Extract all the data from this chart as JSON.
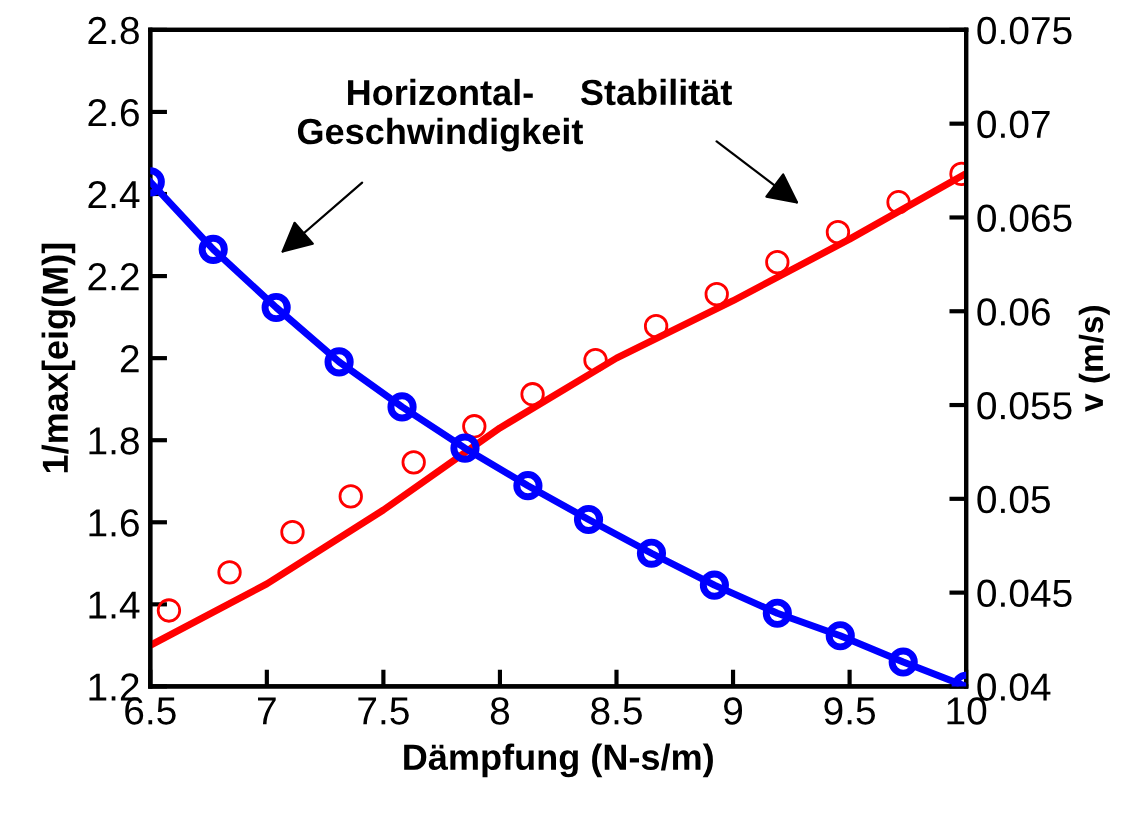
{
  "chart_data": {
    "type": "line",
    "xlabel": "Dämpfung (N-s/m)",
    "ylabel": "1/max[eig(M)]",
    "y2label": "v (m/s)",
    "xlim": [
      6.5,
      10
    ],
    "xticks": [
      6.5,
      7,
      7.5,
      8,
      8.5,
      9,
      9.5,
      10
    ],
    "ylim": [
      1.2,
      2.8
    ],
    "yticks": [
      1.2,
      1.4,
      1.6,
      1.8,
      2,
      2.2,
      2.4,
      2.6,
      2.8
    ],
    "y2lim": [
      0.04,
      0.075
    ],
    "y2ticks": [
      0.04,
      0.045,
      0.05,
      0.055,
      0.06,
      0.065,
      0.07,
      0.075
    ],
    "grid": false,
    "legend": false,
    "series": [
      {
        "color": "#ff0000",
        "marker": "none",
        "x": [
          6.5,
          7,
          7.5,
          8,
          8.5,
          9,
          9.5,
          10
        ],
        "values": [
          1.3,
          1.45,
          1.63,
          1.83,
          2.0,
          2.14,
          2.29,
          2.45
        ]
      },
      {
        "type": "scatter",
        "color": "#ff0000",
        "marker": "circle",
        "x": [
          6.58,
          6.84,
          7.11,
          7.36,
          7.63,
          7.89,
          8.14,
          8.41,
          8.67,
          8.93,
          9.19,
          9.45,
          9.71,
          9.98
        ],
        "values": [
          1.385,
          1.478,
          1.576,
          1.663,
          1.746,
          1.834,
          1.912,
          1.995,
          2.078,
          2.156,
          2.234,
          2.307,
          2.38,
          2.449
        ]
      },
      {
        "type": "line",
        "axis": "y2",
        "color": "#0000ff",
        "marker": "circle",
        "x": [
          6.5,
          6.77,
          7.04,
          7.31,
          7.58,
          7.85,
          8.12,
          8.38,
          8.65,
          8.92,
          9.19,
          9.46,
          9.73,
          10
        ],
        "values": [
          0.0669,
          0.0633,
          0.0602,
          0.0573,
          0.0549,
          0.0527,
          0.0507,
          0.0489,
          0.0471,
          0.0454,
          0.0439,
          0.0427,
          0.0413,
          0.04
        ]
      }
    ],
    "annotations": [
      "Horizontal-\nGeschwindigkeit",
      "Stabilität"
    ]
  }
}
